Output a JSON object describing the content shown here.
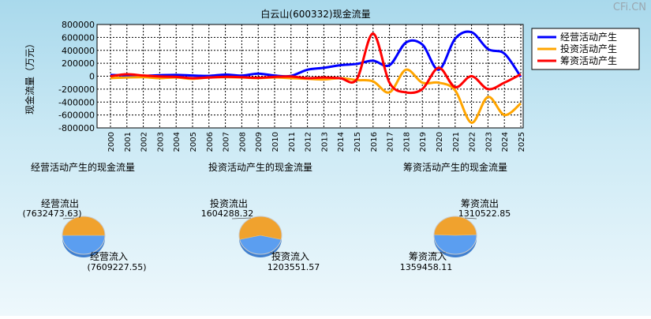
{
  "watermark": "CFi.CN",
  "chart_data": [
    {
      "type": "line",
      "title": "白云山(600332)现金流量",
      "ylabel": "现金流量（万元）",
      "xlabel": "",
      "ylim": [
        -800000,
        800000
      ],
      "yticks": [
        800000,
        600000,
        400000,
        200000,
        0,
        -200000,
        -400000,
        -600000,
        -800000
      ],
      "grid": true,
      "legend_position": "top-right",
      "x": [
        "2000",
        "2001",
        "2002",
        "2003",
        "2004",
        "2005",
        "2006",
        "2007",
        "2008",
        "2009",
        "2010",
        "2011",
        "2012",
        "2013",
        "2014",
        "2015",
        "2016",
        "2017",
        "2018",
        "2019",
        "2020",
        "2021",
        "2022",
        "2023",
        "2024",
        "2025"
      ],
      "series": [
        {
          "name": "经营活动产生",
          "color": "#0000ff",
          "values": [
            20000,
            10000,
            5000,
            15000,
            20000,
            10000,
            5000,
            25000,
            10000,
            40000,
            10000,
            5000,
            100000,
            130000,
            170000,
            190000,
            240000,
            170000,
            520000,
            490000,
            100000,
            580000,
            680000,
            420000,
            350000,
            -10000
          ]
        },
        {
          "name": "投资活动产生",
          "color": "#ffa500",
          "values": [
            -30000,
            -20000,
            -15000,
            -30000,
            -20000,
            -40000,
            -20000,
            -15000,
            -20000,
            -30000,
            -20000,
            -30000,
            -40000,
            -50000,
            -30000,
            -60000,
            -80000,
            -250000,
            100000,
            -100000,
            -100000,
            -220000,
            -720000,
            -320000,
            -600000,
            -420000
          ]
        },
        {
          "name": "筹资活动产生",
          "color": "#ff0000",
          "values": [
            0,
            30000,
            10000,
            -5000,
            -10000,
            -30000,
            -20000,
            -10000,
            -15000,
            -25000,
            -10000,
            -5000,
            -30000,
            -20000,
            -30000,
            -50000,
            660000,
            -100000,
            -250000,
            -200000,
            130000,
            -170000,
            0,
            -200000,
            -100000,
            30000
          ]
        }
      ]
    },
    {
      "type": "pie",
      "title": "经营活动产生的现金流量",
      "labels": [
        "经营流出",
        "经营流入"
      ],
      "values": [
        7632473.63,
        7609227.55
      ],
      "value_labels": [
        "(7632473.63)",
        "(7609227.55)"
      ],
      "colors": [
        "#f0a22e",
        "#5b9ef0"
      ]
    },
    {
      "type": "pie",
      "title": "投资活动产生的现金流量",
      "labels": [
        "投资流出",
        "投资流入"
      ],
      "values": [
        1604288.32,
        1203551.57
      ],
      "value_labels": [
        "1604288.32",
        "1203551.57"
      ],
      "colors": [
        "#f0a22e",
        "#5b9ef0"
      ]
    },
    {
      "type": "pie",
      "title": "筹资活动产生的现金流量",
      "labels": [
        "筹资流出",
        "筹资流入"
      ],
      "values": [
        1310522.85,
        1359458.11
      ],
      "value_labels": [
        "1310522.85",
        "1359458.11"
      ],
      "colors": [
        "#f0a22e",
        "#5b9ef0"
      ]
    }
  ]
}
